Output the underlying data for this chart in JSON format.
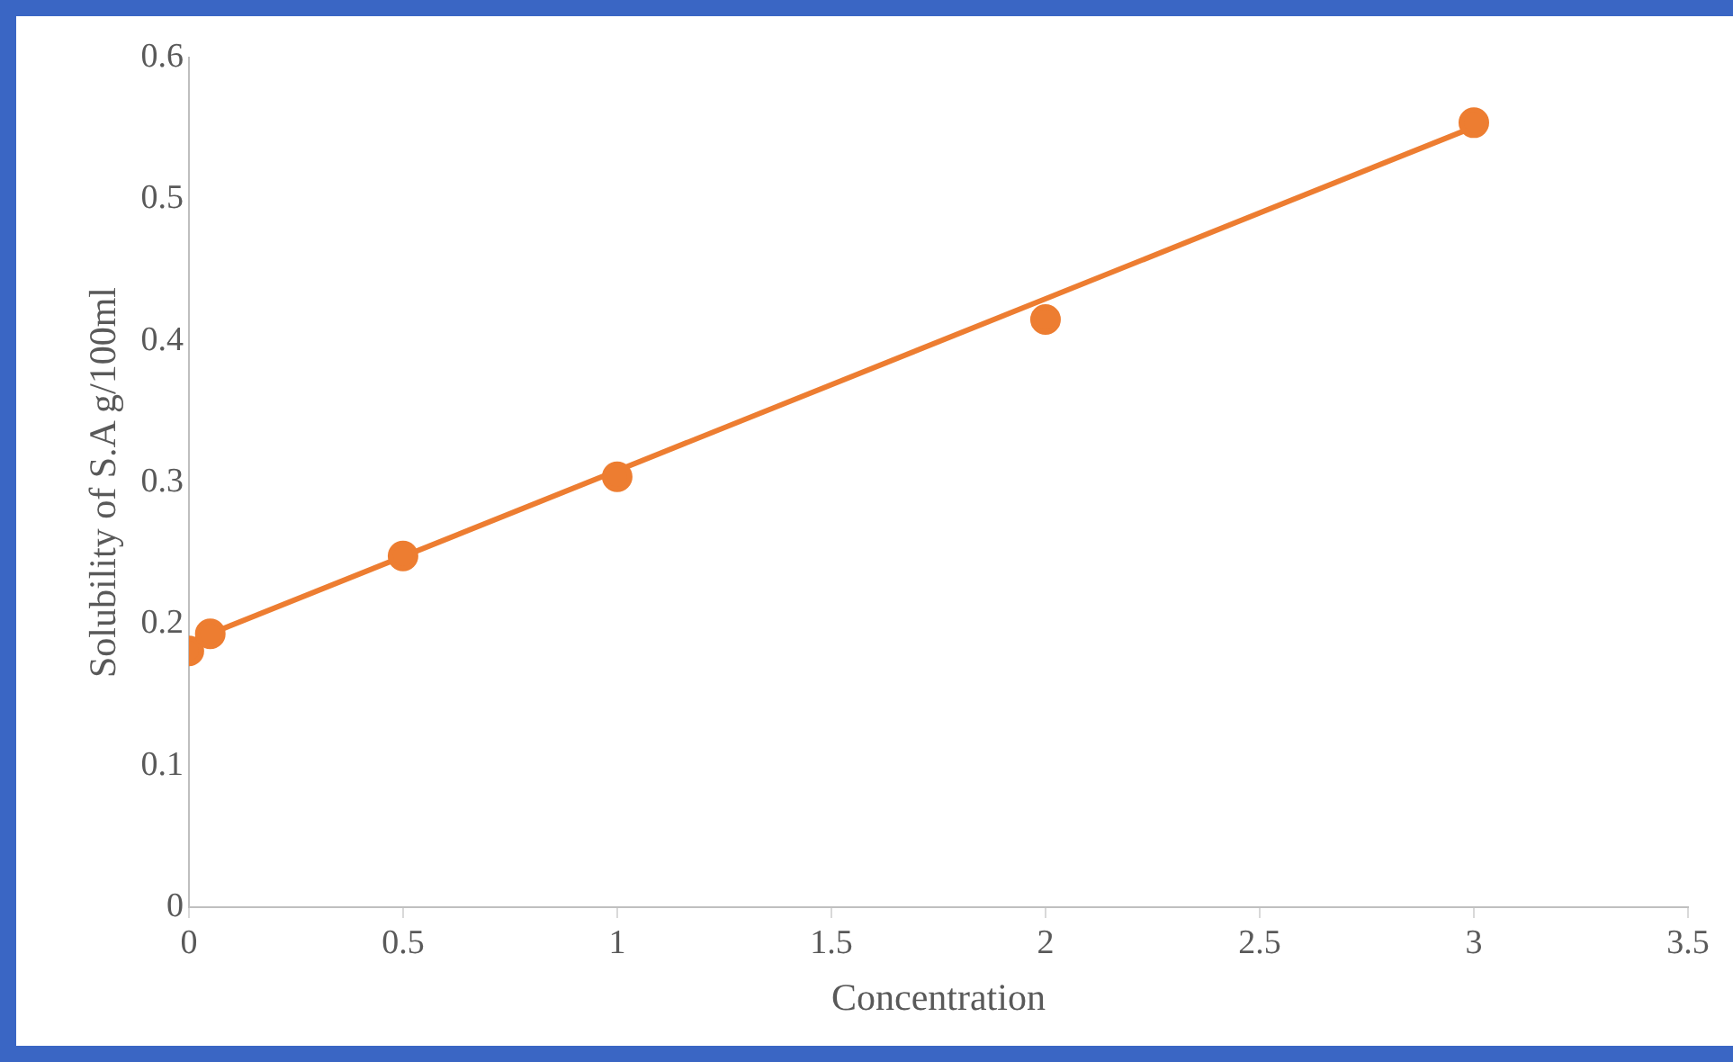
{
  "chart_data": {
    "type": "scatter",
    "xlabel": "Concentration",
    "ylabel": "Solubility of S.A g/100ml",
    "x": [
      0,
      0.05,
      0.5,
      1,
      2,
      3
    ],
    "series": [
      {
        "color": "#ed7d31",
        "values": [
          0.181,
          0.193,
          0.248,
          0.304,
          0.415,
          0.554
        ],
        "marker": "circle"
      },
      {
        "type": "line",
        "color": "#ed7d31",
        "x": [
          0,
          3
        ],
        "values": [
          0.187,
          0.551
        ],
        "marker": "none"
      }
    ],
    "xlim": [
      0,
      3.5
    ],
    "xticks": [
      0,
      0.5,
      1,
      1.5,
      2,
      2.5,
      3,
      3.5
    ],
    "ylim": [
      0,
      0.6
    ],
    "yticks": [
      0,
      0.1,
      0.2,
      0.3,
      0.4,
      0.5,
      0.6
    ],
    "grid": false,
    "legend": false
  }
}
